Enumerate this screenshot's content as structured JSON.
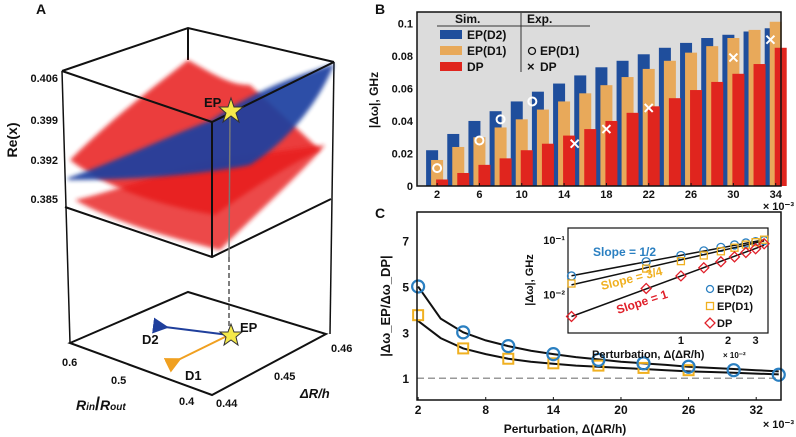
{
  "colors": {
    "ep_d2": "#1f4e9c",
    "ep_d1": "#e8a95a",
    "dp": "#e0251e",
    "star": "#f5e94a",
    "inset_d2": "#2a7fc1",
    "inset_d1": "#f0b020",
    "inset_dp": "#e0202a",
    "grid_bg": "#dcdcdc"
  },
  "panel_a": {
    "label": "A",
    "zlabel": "Re(x)",
    "zticks": [
      "0.406",
      "0.399",
      "0.392",
      "0.385"
    ],
    "xlabel_main": "R",
    "xlabel_sub1": "in",
    "xlabel_sep": "/",
    "xlabel_main2": "R",
    "xlabel_sub2": "out",
    "xticks": [
      "0.6",
      "0.5",
      "0.4"
    ],
    "ylabel": "ΔR/h",
    "yticks": [
      "0.44",
      "0.45",
      "0.46"
    ],
    "ep_top": "EP",
    "ep_bottom": "EP",
    "d2": "D2",
    "d1": "D1"
  },
  "chart_data": [
    {
      "panel": "B",
      "type": "bar",
      "ylabel": "|Δω|, GHz",
      "x_multiplier": "× 10⁻³",
      "x": [
        2,
        4,
        6,
        8,
        10,
        12,
        14,
        16,
        18,
        20,
        22,
        24,
        26,
        28,
        30,
        32,
        34
      ],
      "xticks": [
        2,
        6,
        10,
        14,
        18,
        22,
        26,
        30,
        34
      ],
      "yticks": [
        "0",
        "0.02",
        "0.04",
        "0.06",
        "0.08",
        "0.1"
      ],
      "ylim": [
        0,
        0.107
      ],
      "xlim": [
        0.1,
        34.5
      ],
      "legend": {
        "sim_header": "Sim.",
        "exp_header": "Exp.",
        "sim": [
          "EP(D2)",
          "EP(D1)",
          "DP"
        ],
        "exp": [
          "EP(D1)",
          "DP"
        ],
        "placement": "top-left"
      },
      "series": [
        {
          "name": "EP(D2)",
          "kind": "sim",
          "values": [
            0.022,
            0.032,
            0.04,
            0.046,
            0.052,
            0.058,
            0.063,
            0.068,
            0.073,
            0.077,
            0.081,
            0.085,
            0.088,
            0.091,
            0.093,
            0.095,
            0.097
          ]
        },
        {
          "name": "EP(D1)",
          "kind": "sim",
          "values": [
            0.016,
            0.024,
            0.03,
            0.036,
            0.041,
            0.047,
            0.052,
            0.057,
            0.062,
            0.067,
            0.072,
            0.077,
            0.082,
            0.086,
            0.091,
            0.096,
            0.101
          ]
        },
        {
          "name": "DP",
          "kind": "sim",
          "values": [
            0.004,
            0.008,
            0.013,
            0.017,
            0.022,
            0.026,
            0.031,
            0.035,
            0.04,
            0.045,
            0.049,
            0.054,
            0.059,
            0.064,
            0.069,
            0.075,
            0.085
          ]
        }
      ],
      "exp_ep_d1": {
        "x": [
          2,
          6,
          8,
          11
        ],
        "y": [
          0.011,
          0.028,
          0.041,
          0.052
        ]
      },
      "exp_dp": {
        "x": [
          15,
          18,
          22,
          30,
          33.5
        ],
        "y": [
          0.026,
          0.035,
          0.048,
          0.079,
          0.09
        ]
      }
    },
    {
      "panel": "C",
      "type": "line",
      "ylabel": "|Δω_EP/Δω_DP|",
      "xlabel": "Perturbation, Δ(ΔR/h)",
      "x_multiplier": "× 10⁻³",
      "xticks": [
        2,
        8,
        14,
        20,
        26,
        32
      ],
      "yticks": [
        1,
        3,
        5,
        7
      ],
      "xlim": [
        1.9,
        34.2
      ],
      "ylim": [
        0.05,
        8.25
      ],
      "reference_line": 1,
      "curves": [
        {
          "x": [
            2,
            4,
            6,
            8,
            10,
            12,
            14,
            16,
            18,
            20,
            22,
            24,
            26,
            28,
            30,
            32,
            34
          ],
          "y": [
            5.0,
            3.6,
            3.0,
            2.65,
            2.4,
            2.2,
            2.05,
            1.92,
            1.82,
            1.72,
            1.65,
            1.58,
            1.5,
            1.45,
            1.4,
            1.35,
            1.3
          ]
        },
        {
          "x": [
            2,
            4,
            6,
            8,
            10,
            12,
            14,
            16,
            18,
            20,
            22,
            24,
            26,
            28,
            30,
            32,
            34
          ],
          "y": [
            3.5,
            2.75,
            2.3,
            2.05,
            1.85,
            1.72,
            1.63,
            1.55,
            1.5,
            1.45,
            1.4,
            1.35,
            1.3,
            1.27,
            1.24,
            1.2,
            1.17
          ]
        }
      ],
      "points_ep_d2": {
        "x": [
          2,
          6,
          10,
          14,
          18,
          22,
          26,
          30,
          34
        ],
        "y": [
          5.0,
          3.0,
          2.4,
          2.05,
          1.8,
          1.65,
          1.5,
          1.35,
          1.15
        ]
      },
      "points_ep_d1": {
        "x": [
          2,
          6,
          10,
          14,
          18,
          22,
          26
        ],
        "y": [
          3.75,
          2.3,
          1.85,
          1.65,
          1.55,
          1.45,
          1.35
        ]
      },
      "inset": {
        "type": "scatter",
        "xscale": "log",
        "yscale": "log",
        "xlabel": "Perturbation, Δ(ΔR/h)",
        "x_multiplier": "× 10⁻²",
        "ylabel": "|Δω|, GHz",
        "xticks": [
          "1",
          "2",
          "3"
        ],
        "yticks": [
          "10⁻¹",
          "10⁻²"
        ],
        "xlim": [
          0.19,
          3.6
        ],
        "ylim": [
          0.002,
          0.165
        ],
        "annotations": [
          "Slope = 1/2",
          "Slope = 3/4",
          "Slope = 1"
        ],
        "legend": [
          "EP(D2)",
          "EP(D1)",
          "DP"
        ],
        "series": [
          {
            "name": "EP(D2)",
            "x": [
              0.2,
              0.6,
              1.0,
              1.4,
              1.8,
              2.2,
              2.6,
              3.0,
              3.4
            ],
            "y": [
              0.022,
              0.04,
              0.052,
              0.063,
              0.073,
              0.081,
              0.088,
              0.093,
              0.097
            ]
          },
          {
            "name": "EP(D1)",
            "x": [
              0.2,
              0.6,
              1.0,
              1.4,
              1.8,
              2.2,
              2.6,
              3.0,
              3.4
            ],
            "y": [
              0.016,
              0.03,
              0.041,
              0.052,
              0.062,
              0.072,
              0.082,
              0.091,
              0.101
            ]
          },
          {
            "name": "DP",
            "x": [
              0.2,
              0.6,
              1.0,
              1.4,
              1.8,
              2.2,
              2.6,
              3.0,
              3.4
            ],
            "y": [
              0.004,
              0.013,
              0.022,
              0.031,
              0.04,
              0.049,
              0.059,
              0.069,
              0.085
            ]
          }
        ]
      }
    }
  ]
}
